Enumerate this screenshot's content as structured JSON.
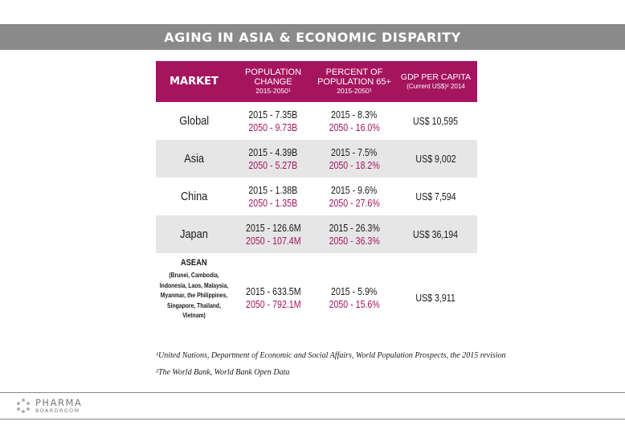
{
  "title": "AGING IN ASIA & ECONOMIC DISPARITY",
  "table": {
    "headers": {
      "market": "MARKET",
      "population_line1": "POPULATION",
      "population_line2": "CHANGE",
      "population_line3": "2015-2050¹",
      "percent_line1": "PERCENT OF",
      "percent_line2": "POPULATION 65+",
      "percent_line3": "2015-2050¹",
      "gdp_line1": "GDP PER CAPITA",
      "gdp_line2": "(Current US$)² 2014"
    },
    "rows": [
      {
        "market": "Global",
        "pop_2015": "2015 - 7.35B",
        "pop_2050": "2050 - 9.73B",
        "pct_2015": "2015 - 8.3%",
        "pct_2050": "2050 - 16.0%",
        "gdp": "US$ 10,595"
      },
      {
        "market": "Asia",
        "pop_2015": "2015 - 4.39B",
        "pop_2050": "2050 - 5.27B",
        "pct_2015": "2015 - 7.5%",
        "pct_2050": "2050 - 18.2%",
        "gdp": "US$ 9,002"
      },
      {
        "market": "China",
        "pop_2015": "2015 - 1.38B",
        "pop_2050": "2050 - 1.35B",
        "pct_2015": "2015 - 9.6%",
        "pct_2050": "2050 - 27.6%",
        "gdp": "US$ 7,594"
      },
      {
        "market": "Japan",
        "pop_2015": "2015 - 126.6M",
        "pop_2050": "2050 - 107.4M",
        "pct_2015": "2015 - 26.3%",
        "pct_2050": "2050 - 36.3%",
        "gdp": "US$ 36,194"
      },
      {
        "market": "ASEAN",
        "market_detail": "(Brunei, Cambodia, Indonesia, Laos, Malaysia, Myanmar, the Philippines, Singapore, Thailand, Vietnam)",
        "pop_2015": "2015 - 633.5M",
        "pop_2050": "2050 - 792.1M",
        "pct_2015": "2015 - 5.9%",
        "pct_2050": "2050 - 15.6%",
        "gdp": "US$ 3,911"
      }
    ]
  },
  "footnotes": {
    "note1": "¹United Nations, Department of Economic and Social Affairs, World Population Prospects, the 2015 revision",
    "note2": "²The World Bank, World Bank Open Data"
  },
  "logo": {
    "line1": "PHARMA",
    "line2": "BOARDROOM"
  },
  "colors": {
    "accent": "#a5155f",
    "title_bar": "#8a8a8a",
    "row_shade": "#e6e6e6"
  }
}
